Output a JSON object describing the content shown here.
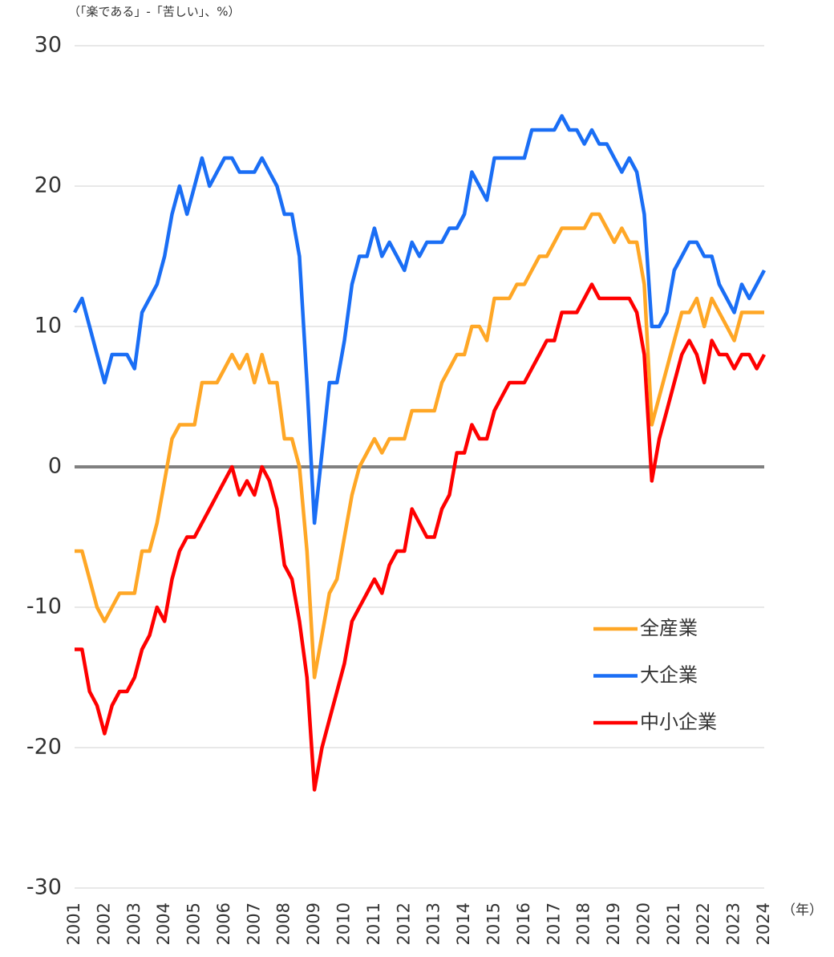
{
  "chart_data": {
    "type": "line",
    "y_axis_label": "（「楽である」-「苦しい」、%）",
    "x_axis_label": "（年）",
    "categories": [
      "2001",
      null,
      null,
      null,
      "2002",
      null,
      null,
      null,
      "2003",
      null,
      null,
      null,
      "2004",
      null,
      null,
      null,
      "2005",
      null,
      null,
      null,
      "2006",
      null,
      null,
      null,
      "2007",
      null,
      null,
      null,
      "2008",
      null,
      null,
      null,
      "2009",
      null,
      null,
      null,
      "2010",
      null,
      null,
      null,
      "2011",
      null,
      null,
      null,
      "2012",
      null,
      null,
      null,
      "2013",
      null,
      null,
      null,
      "2014",
      null,
      null,
      null,
      "2015",
      null,
      null,
      null,
      "2016",
      null,
      null,
      null,
      "2017",
      null,
      null,
      null,
      "2018",
      null,
      null,
      null,
      "2019",
      null,
      null,
      null,
      "2020",
      null,
      null,
      null,
      "2021",
      null,
      null,
      null,
      "2022",
      null,
      null,
      null,
      "2023",
      null,
      null,
      null,
      "2024"
    ],
    "series": [
      {
        "name": "全産業",
        "color": "#ffa726",
        "values": [
          -6,
          -6,
          -8,
          -10,
          -11,
          -10,
          -9,
          -9,
          -9,
          -6,
          -6,
          -4,
          -1,
          2,
          3,
          3,
          3,
          6,
          6,
          6,
          7,
          8,
          7,
          8,
          6,
          8,
          6,
          6,
          2,
          2,
          0,
          -6,
          -15,
          -12,
          -9,
          -8,
          -5,
          -2,
          0,
          1,
          2,
          1,
          2,
          2,
          2,
          4,
          4,
          4,
          4,
          6,
          7,
          8,
          8,
          10,
          10,
          9,
          12,
          12,
          12,
          13,
          13,
          14,
          15,
          15,
          16,
          17,
          17,
          17,
          17,
          18,
          18,
          17,
          16,
          17,
          16,
          16,
          13,
          3,
          5,
          7,
          9,
          11,
          11,
          12,
          10,
          12,
          11,
          10,
          9,
          11,
          11,
          11,
          11
        ]
      },
      {
        "name": "大企業",
        "color": "#1a6ef5",
        "values": [
          11,
          12,
          10,
          8,
          6,
          8,
          8,
          8,
          7,
          11,
          12,
          13,
          15,
          18,
          20,
          18,
          20,
          22,
          20,
          21,
          22,
          22,
          21,
          21,
          21,
          22,
          21,
          20,
          18,
          18,
          15,
          6,
          -4,
          1,
          6,
          6,
          9,
          13,
          15,
          15,
          17,
          15,
          16,
          15,
          14,
          16,
          15,
          16,
          16,
          16,
          17,
          17,
          18,
          21,
          20,
          19,
          22,
          22,
          22,
          22,
          22,
          24,
          24,
          24,
          24,
          25,
          24,
          24,
          23,
          24,
          23,
          23,
          22,
          21,
          22,
          21,
          18,
          10,
          10,
          11,
          14,
          15,
          16,
          16,
          15,
          15,
          13,
          12,
          11,
          13,
          12,
          13,
          14
        ]
      },
      {
        "name": "中小企業",
        "color": "#ff0000",
        "values": [
          -13,
          -13,
          -16,
          -17,
          -19,
          -17,
          -16,
          -16,
          -15,
          -13,
          -12,
          -10,
          -11,
          -8,
          -6,
          -5,
          -5,
          -4,
          -3,
          -2,
          -1,
          0,
          -2,
          -1,
          -2,
          0,
          -1,
          -3,
          -7,
          -8,
          -11,
          -15,
          -23,
          -20,
          -18,
          -16,
          -14,
          -11,
          -10,
          -9,
          -8,
          -9,
          -7,
          -6,
          -6,
          -3,
          -4,
          -5,
          -5,
          -3,
          -2,
          1,
          1,
          3,
          2,
          2,
          4,
          5,
          6,
          6,
          6,
          7,
          8,
          9,
          9,
          11,
          11,
          11,
          12,
          13,
          12,
          12,
          12,
          12,
          12,
          11,
          8,
          -1,
          2,
          4,
          6,
          8,
          9,
          8,
          6,
          9,
          8,
          8,
          7,
          8,
          8,
          7,
          8
        ]
      }
    ],
    "ylim": [
      -30,
      30
    ],
    "yticks": [
      -30,
      -20,
      -10,
      0,
      10,
      20,
      30
    ],
    "grid": true,
    "legend": "lower right"
  }
}
